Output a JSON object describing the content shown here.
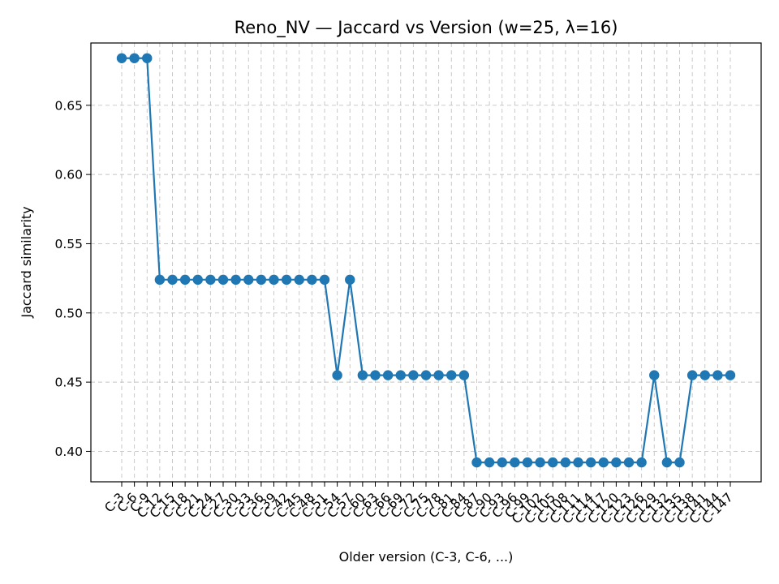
{
  "chart_data": {
    "type": "line",
    "title": "Reno_NV — Jaccard vs Version (w=25, λ=16)",
    "xlabel": "Older version (C-3, C-6, ...)",
    "ylabel": "Jaccard similarity",
    "ylim": [
      0.378,
      0.695
    ],
    "yticks": [
      "0.40",
      "0.45",
      "0.50",
      "0.55",
      "0.60",
      "0.65"
    ],
    "grid": true,
    "categories": [
      "C-3",
      "C-6",
      "C-9",
      "C-12",
      "C-15",
      "C-18",
      "C-21",
      "C-24",
      "C-27",
      "C-30",
      "C-33",
      "C-36",
      "C-39",
      "C-42",
      "C-45",
      "C-48",
      "C-51",
      "C-54",
      "C-57",
      "C-60",
      "C-63",
      "C-66",
      "C-69",
      "C-72",
      "C-75",
      "C-78",
      "C-81",
      "C-84",
      "C-87",
      "C-90",
      "C-93",
      "C-96",
      "C-99",
      "C-102",
      "C-105",
      "C-108",
      "C-111",
      "C-114",
      "C-117",
      "C-120",
      "C-123",
      "C-126",
      "C-129",
      "C-132",
      "C-135",
      "C-138",
      "C-141",
      "C-144",
      "C-147"
    ],
    "series": [
      {
        "color": "#1f77b4",
        "values": [
          0.684,
          0.684,
          0.684,
          0.524,
          0.524,
          0.524,
          0.524,
          0.524,
          0.524,
          0.524,
          0.524,
          0.524,
          0.524,
          0.524,
          0.524,
          0.524,
          0.524,
          0.455,
          0.524,
          0.455,
          0.455,
          0.455,
          0.455,
          0.455,
          0.455,
          0.455,
          0.455,
          0.455,
          0.392,
          0.392,
          0.392,
          0.392,
          0.392,
          0.392,
          0.392,
          0.392,
          0.392,
          0.392,
          0.392,
          0.392,
          0.392,
          0.392,
          0.455,
          0.392,
          0.392,
          0.455,
          0.455,
          0.455,
          0.455
        ]
      }
    ]
  }
}
